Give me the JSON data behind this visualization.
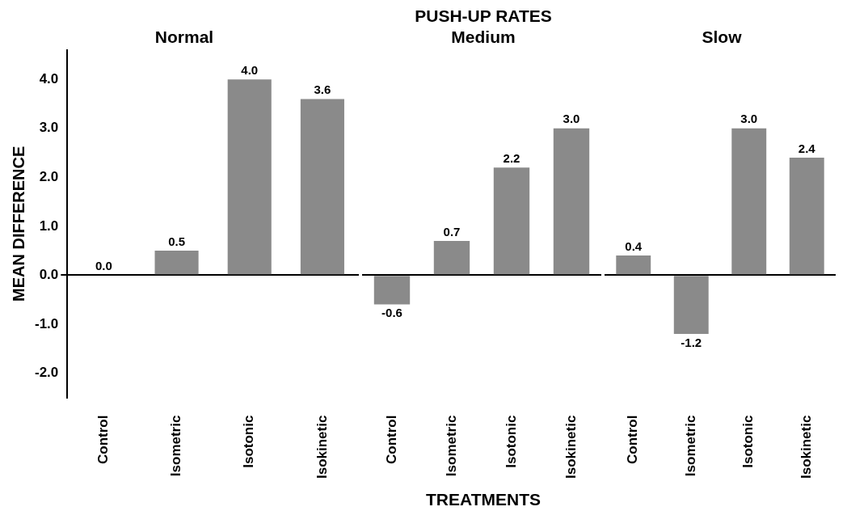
{
  "chart_data": [
    {
      "type": "bar",
      "subtitle": "Normal",
      "ylabel": "MEAN DIFFERENCE",
      "categories": [
        "Control",
        "Isometric",
        "Isotonic",
        "Isokinetic"
      ],
      "values": [
        0.0,
        0.5,
        4.0,
        3.6
      ],
      "value_labels": [
        "0.0",
        "0.5",
        "4.0",
        "3.6"
      ],
      "color": "#8a8a8a",
      "ylim": [
        -2.5,
        4.6
      ],
      "yticks": [
        {
          "value": -2,
          "label": "-2.0"
        },
        {
          "value": -1,
          "label": "-1.0"
        },
        {
          "value": 0,
          "label": "0.0"
        },
        {
          "value": 1,
          "label": "1.0"
        },
        {
          "value": 2,
          "label": "2.0"
        },
        {
          "value": 3,
          "label": "3.0"
        },
        {
          "value": 4,
          "label": "4.0"
        }
      ]
    },
    {
      "type": "bar",
      "title": "PUSH-UP RATES",
      "subtitle": "Medium",
      "xlabel": "TREATMENTS",
      "categories": [
        "Control",
        "Isometric",
        "Isotonic",
        "Isokinetic"
      ],
      "values": [
        -0.6,
        0.7,
        2.2,
        3.0
      ],
      "value_labels": [
        "-0.6",
        "0.7",
        "2.2",
        "3.0"
      ],
      "color": "#8a8a8a",
      "tick_labels": "x"
    },
    {
      "type": "bar",
      "subtitle": "Slow",
      "categories": [
        "Control",
        "Isometric",
        "Isotonic",
        "Isokinetic"
      ],
      "values": [
        0.4,
        -1.2,
        3.0,
        2.4
      ],
      "value_labels": [
        "0.4",
        "-1.2",
        "3.0",
        "2.4"
      ],
      "color": "#8a8a8a",
      "tick_labels": "x"
    }
  ]
}
